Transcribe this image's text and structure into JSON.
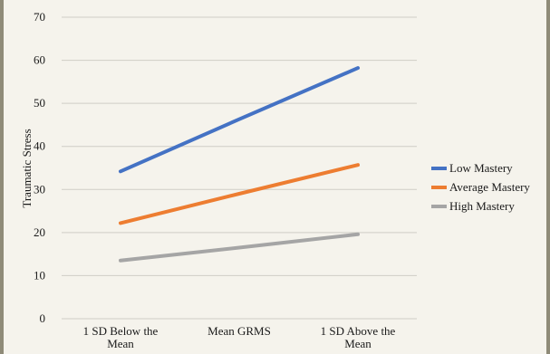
{
  "chart_data": {
    "type": "line",
    "title": "",
    "xlabel": "",
    "ylabel": "Traumatic Stress",
    "ylim": [
      0,
      70
    ],
    "yticks": [
      "0",
      "10",
      "20",
      "30",
      "40",
      "50",
      "60",
      "70"
    ],
    "categories": [
      [
        "1 SD Below the",
        "Mean"
      ],
      [
        "Mean GRMS"
      ],
      [
        "1 SD Above the",
        "Mean"
      ]
    ],
    "grid": true,
    "legend_position": "right",
    "series": [
      {
        "name": "Low Mastery",
        "values": [
          34.2,
          46.3,
          58.2
        ],
        "color": "#4472c4"
      },
      {
        "name": "Average Mastery",
        "values": [
          22.2,
          29.0,
          35.7
        ],
        "color": "#ed7d31"
      },
      {
        "name": "High Mastery",
        "values": [
          13.5,
          16.5,
          19.6
        ],
        "color": "#a5a5a5"
      }
    ]
  }
}
